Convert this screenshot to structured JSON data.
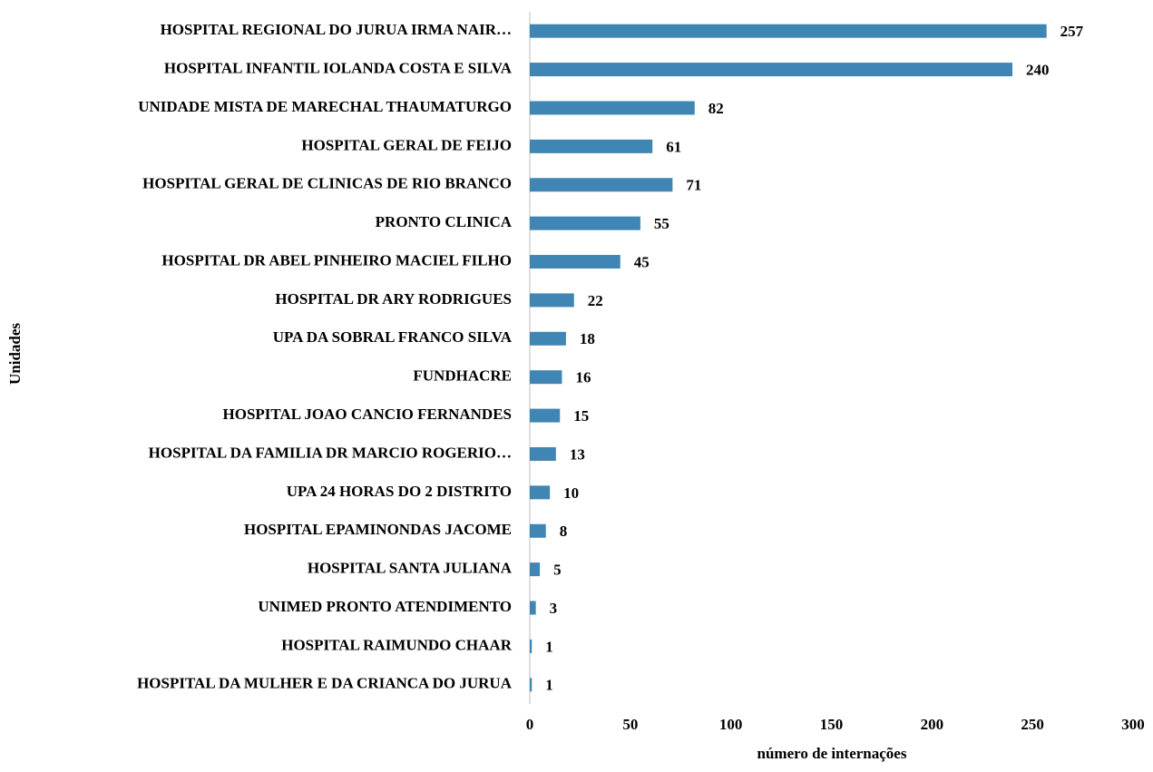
{
  "chart_data": {
    "type": "barh",
    "x_label": "número de internações",
    "y_label": "Unidades",
    "categories": [
      "HOSPITAL REGIONAL DO JURUA IRMA NAIR…",
      "HOSPITAL INFANTIL IOLANDA COSTA E SILVA",
      "UNIDADE MISTA DE MARECHAL THAUMATURGO",
      "HOSPITAL GERAL DE FEIJO",
      "HOSPITAL GERAL DE CLINICAS DE RIO BRANCO",
      "PRONTO CLINICA",
      "HOSPITAL DR ABEL PINHEIRO MACIEL FILHO",
      "HOSPITAL DR ARY RODRIGUES",
      "UPA DA SOBRAL FRANCO SILVA",
      "FUNDHACRE",
      "HOSPITAL JOAO CANCIO FERNANDES",
      "HOSPITAL DA FAMILIA DR MARCIO ROGERIO…",
      "UPA 24 HORAS DO 2 DISTRITO",
      "HOSPITAL EPAMINONDAS JACOME",
      "HOSPITAL SANTA JULIANA",
      "UNIMED PRONTO ATENDIMENTO",
      "HOSPITAL RAIMUNDO CHAAR",
      "HOSPITAL DA MULHER E DA CRIANCA DO JURUA"
    ],
    "values": [
      257,
      240,
      82,
      61,
      71,
      55,
      45,
      22,
      18,
      16,
      15,
      13,
      10,
      8,
      5,
      3,
      1,
      1
    ],
    "color": "#3f86b4",
    "xlim": [
      0,
      300
    ],
    "xticks": [
      0,
      50,
      100,
      150,
      200,
      250,
      300
    ],
    "grid": false,
    "data_labels": true
  }
}
